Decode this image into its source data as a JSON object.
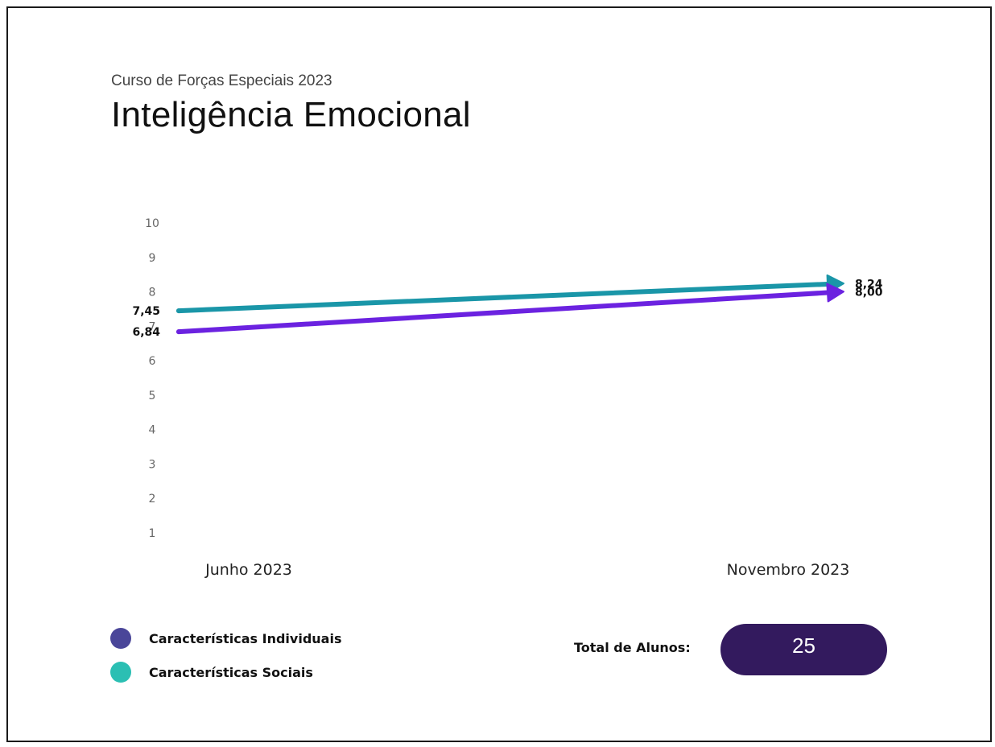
{
  "header": {
    "subtitle": "Curso de Forças Especiais 2023",
    "title": "Inteligência Emocional"
  },
  "chart_data": {
    "type": "line",
    "title": "Inteligência Emocional",
    "subtitle": "Curso de Forças Especiais 2023",
    "x": [
      "Junho 2023",
      "Novembro 2023"
    ],
    "y_ticks": [
      "10",
      "9",
      "8",
      "7",
      "6",
      "5",
      "4",
      "3",
      "2",
      "1"
    ],
    "ylim": [
      1,
      10
    ],
    "grid": false,
    "legend_position": "bottom-left",
    "series": [
      {
        "name": "Características Sociais",
        "values": [
          7.45,
          8.24
        ],
        "labels": [
          "7,45",
          "8,24"
        ],
        "color": "#1a96a8"
      },
      {
        "name": "Características Individuais",
        "values": [
          6.84,
          8.0
        ],
        "labels": [
          "6,84",
          "8,00"
        ],
        "color": "#6b22e0"
      }
    ]
  },
  "legend": [
    {
      "label": "Características Individuais",
      "color": "#4a4699"
    },
    {
      "label": "Características Sociais",
      "color": "#2bbfb3"
    }
  ],
  "total": {
    "label": "Total de Alunos:",
    "value": "25"
  }
}
